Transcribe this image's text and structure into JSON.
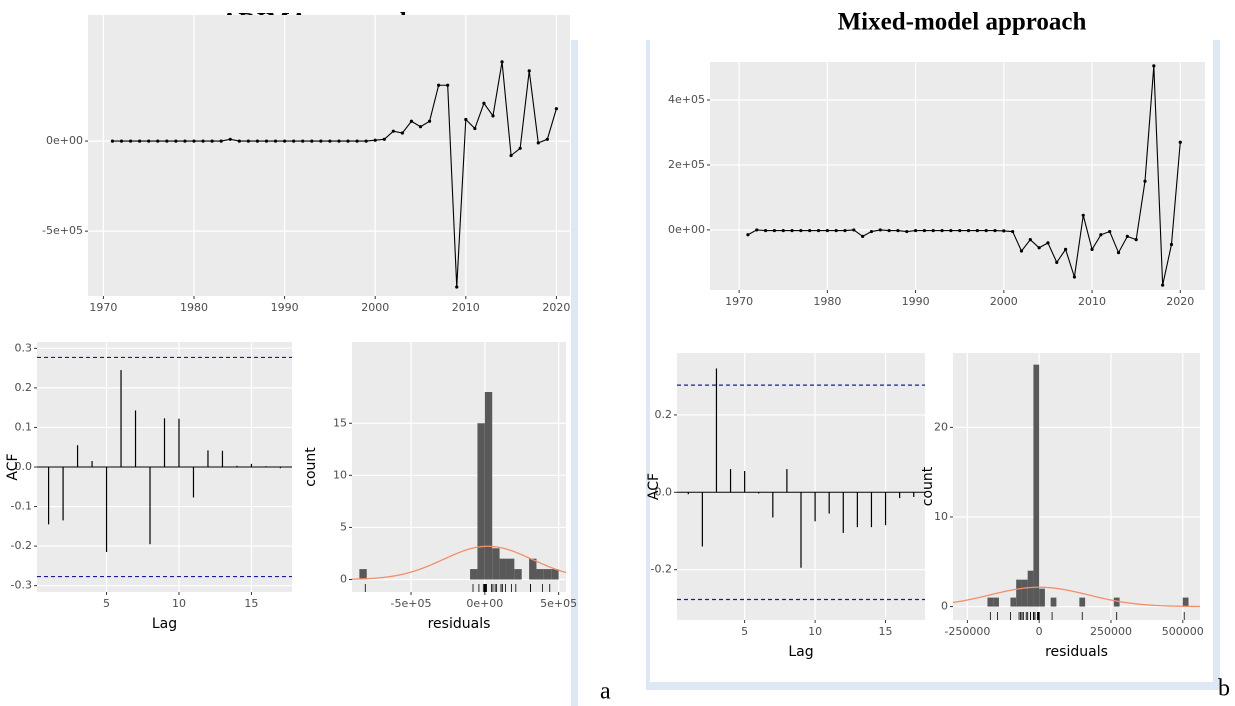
{
  "panels": [
    {
      "title": "ARIMA approach",
      "label": "a"
    },
    {
      "title": "Mixed-model approach",
      "label": "b"
    }
  ],
  "chart_data": [
    {
      "type": "line",
      "color": "#000000",
      "grid": true,
      "x": [
        1971,
        1972,
        1973,
        1974,
        1975,
        1976,
        1977,
        1978,
        1979,
        1980,
        1981,
        1982,
        1983,
        1984,
        1985,
        1986,
        1987,
        1988,
        1989,
        1990,
        1991,
        1992,
        1993,
        1994,
        1995,
        1996,
        1997,
        1998,
        1999,
        2000,
        2001,
        2002,
        2003,
        2004,
        2005,
        2006,
        2007,
        2008,
        2009,
        2010,
        2011,
        2012,
        2013,
        2014,
        2015,
        2016,
        2017,
        2018,
        2019,
        2020
      ],
      "values": [
        0,
        0,
        0,
        0,
        0,
        0,
        0,
        0,
        0,
        0,
        0,
        0,
        0,
        10000,
        0,
        0,
        0,
        0,
        0,
        0,
        0,
        0,
        0,
        0,
        0,
        0,
        0,
        0,
        0,
        5000,
        10000,
        55000,
        45000,
        110000,
        80000,
        110000,
        310000,
        310000,
        -810000,
        120000,
        70000,
        210000,
        140000,
        440000,
        -80000,
        -40000,
        390000,
        -10000,
        10000,
        180000
      ],
      "xlim": [
        1968.3,
        2021.5
      ],
      "xticks": [
        1970,
        1980,
        1990,
        2000,
        2010,
        2020
      ],
      "ylim": [
        -860000,
        700000
      ],
      "yticks": [
        {
          "value": -500000,
          "label": "-5e+05"
        },
        {
          "value": 0,
          "label": "0e+00"
        }
      ]
    },
    {
      "type": "acf",
      "color": "#000000",
      "grid": true,
      "x_label": "Lag",
      "y_label": "ACF",
      "x": [
        1,
        2,
        3,
        4,
        5,
        6,
        7,
        8,
        9,
        10,
        11,
        12,
        13,
        14,
        15,
        16,
        17
      ],
      "values": [
        -0.145,
        -0.135,
        0.055,
        0.015,
        -0.215,
        0.245,
        0.143,
        -0.195,
        0.123,
        0.122,
        -0.077,
        0.042,
        0.041,
        0.003,
        0.008,
        0.002,
        -0.003
      ],
      "conf_limits": [
        -0.277,
        0.277
      ],
      "conf_color": "#1a1aa6",
      "xlim": [
        0.2,
        17.8
      ],
      "xticks": [
        5,
        10,
        15
      ],
      "ylim": [
        -0.316,
        0.316
      ],
      "yticks": [
        -0.3,
        -0.2,
        -0.1,
        {
          "value": 0,
          "label": "0.0"
        },
        0.1,
        0.2,
        0.3
      ]
    },
    {
      "type": "histogram",
      "color": "#595959",
      "grid": true,
      "x_label": "residuals",
      "y_label": "count",
      "bins": [
        -850000,
        -800000,
        -750000,
        -700000,
        -650000,
        -600000,
        -550000,
        -500000,
        -450000,
        -400000,
        -350000,
        -300000,
        -250000,
        -200000,
        -150000,
        -100000,
        -50000,
        0,
        50000,
        100000,
        150000,
        200000,
        250000,
        300000,
        350000,
        400000,
        450000,
        500000,
        550000
      ],
      "counts": [
        1,
        0,
        0,
        0,
        0,
        0,
        0,
        0,
        0,
        0,
        0,
        0,
        0,
        0,
        0,
        1,
        15,
        18,
        3,
        2,
        2,
        1,
        0,
        2,
        1,
        1,
        1,
        0
      ],
      "rug": [
        0,
        0,
        0,
        0,
        0,
        0,
        0,
        0,
        0,
        0,
        0,
        0,
        0,
        10000,
        0,
        0,
        0,
        0,
        0,
        0,
        0,
        0,
        0,
        0,
        0,
        0,
        0,
        0,
        0,
        5000,
        10000,
        55000,
        45000,
        110000,
        80000,
        110000,
        310000,
        310000,
        -810000,
        120000,
        70000,
        210000,
        140000,
        440000,
        -80000,
        -40000,
        390000,
        -10000,
        10000,
        180000
      ],
      "density": {
        "mean": 20000,
        "sd": 300000,
        "color": "#f0906a"
      },
      "xlim": [
        -900000,
        550000
      ],
      "xticks": [
        {
          "value": -500000,
          "label": "-5e+05"
        },
        {
          "value": 0,
          "label": "0e+00"
        },
        {
          "value": 500000,
          "label": "5e+05"
        }
      ],
      "ylim": [
        -1.2,
        22.8
      ],
      "yticks": [
        0,
        5,
        10,
        15
      ]
    },
    {
      "type": "line",
      "color": "#000000",
      "grid": true,
      "x": [
        1971,
        1972,
        1973,
        1974,
        1975,
        1976,
        1977,
        1978,
        1979,
        1980,
        1981,
        1982,
        1983,
        1984,
        1985,
        1986,
        1987,
        1988,
        1989,
        1990,
        1991,
        1992,
        1993,
        1994,
        1995,
        1996,
        1997,
        1998,
        1999,
        2000,
        2001,
        2002,
        2003,
        2004,
        2005,
        2006,
        2007,
        2008,
        2009,
        2010,
        2011,
        2012,
        2013,
        2014,
        2015,
        2016,
        2017,
        2018,
        2019,
        2020
      ],
      "values": [
        -15000,
        0,
        -2000,
        -2000,
        -2000,
        -2000,
        -2000,
        -2000,
        -2000,
        -2000,
        -2000,
        -2000,
        0,
        -20000,
        -5000,
        0,
        -2000,
        -2000,
        -5000,
        -2000,
        -2000,
        -2000,
        -2000,
        -2000,
        -2000,
        -2000,
        -2000,
        -2000,
        -2000,
        -3000,
        -5000,
        -65000,
        -30000,
        -55000,
        -40000,
        -100000,
        -60000,
        -145000,
        45000,
        -60000,
        -15000,
        -5000,
        -70000,
        -20000,
        -30000,
        150000,
        505000,
        -170000,
        -45000,
        270000
      ],
      "xlim": [
        1966.7,
        2022.8
      ],
      "xticks": [
        1970,
        1980,
        1990,
        2000,
        2010,
        2020
      ],
      "ylim": [
        -185000,
        517000
      ],
      "yticks": [
        {
          "value": 0,
          "label": "0e+00"
        },
        {
          "value": 200000,
          "label": "2e+05"
        },
        {
          "value": 400000,
          "label": "4e+05"
        }
      ]
    },
    {
      "type": "acf",
      "color": "#000000",
      "grid": true,
      "x_label": "Lag",
      "y_label": "ACF",
      "x": [
        1,
        2,
        3,
        4,
        5,
        6,
        7,
        8,
        9,
        10,
        11,
        12,
        13,
        14,
        15,
        16,
        17
      ],
      "values": [
        -0.005,
        -0.14,
        0.32,
        0.06,
        0.055,
        -0.003,
        -0.065,
        0.06,
        -0.195,
        -0.075,
        -0.055,
        -0.105,
        -0.09,
        -0.09,
        -0.085,
        -0.015,
        -0.012
      ],
      "conf_limits": [
        -0.277,
        0.277
      ],
      "conf_color": "#1a1aa6",
      "xlim": [
        0.2,
        17.8
      ],
      "xticks": [
        5,
        10,
        15
      ],
      "ylim": [
        -0.33,
        0.36
      ],
      "yticks": [
        -0.2,
        {
          "value": 0,
          "label": "0.0"
        },
        0.2
      ]
    },
    {
      "type": "histogram",
      "color": "#595959",
      "grid": true,
      "x_label": "residuals",
      "y_label": "count",
      "bins": [
        -180000,
        -160000,
        -140000,
        -120000,
        -100000,
        -80000,
        -60000,
        -40000,
        -20000,
        0,
        20000,
        40000,
        60000,
        80000,
        100000,
        120000,
        140000,
        160000,
        180000,
        200000,
        220000,
        240000,
        260000,
        280000,
        300000,
        320000,
        340000,
        360000,
        380000,
        400000,
        420000,
        440000,
        460000,
        480000,
        500000,
        520000
      ],
      "counts": [
        1,
        1,
        0,
        0,
        1,
        3,
        3,
        4,
        27,
        2,
        0,
        1,
        0,
        0,
        0,
        0,
        1,
        0,
        0,
        0,
        0,
        0,
        1,
        0,
        0,
        0,
        0,
        0,
        0,
        0,
        0,
        0,
        0,
        0,
        1
      ],
      "rug": [
        -15000,
        0,
        -2000,
        -2000,
        -2000,
        -2000,
        -2000,
        -2000,
        -2000,
        -2000,
        -2000,
        -2000,
        0,
        -20000,
        -5000,
        0,
        -2000,
        -2000,
        -5000,
        -2000,
        -2000,
        -2000,
        -2000,
        -2000,
        -2000,
        -2000,
        -2000,
        -2000,
        -2000,
        -3000,
        -5000,
        -65000,
        -30000,
        -55000,
        -40000,
        -100000,
        -60000,
        -145000,
        45000,
        -60000,
        -15000,
        -5000,
        -70000,
        -20000,
        -30000,
        150000,
        505000,
        -170000,
        -45000,
        270000
      ],
      "density": {
        "mean": 0,
        "sd": 170000,
        "color": "#f0906a"
      },
      "xlim": [
        -300000,
        560000
      ],
      "xticks": [
        -250000,
        0,
        250000,
        500000
      ],
      "ylim": [
        -1.5,
        28.3
      ],
      "yticks": [
        0,
        10,
        20
      ]
    }
  ]
}
